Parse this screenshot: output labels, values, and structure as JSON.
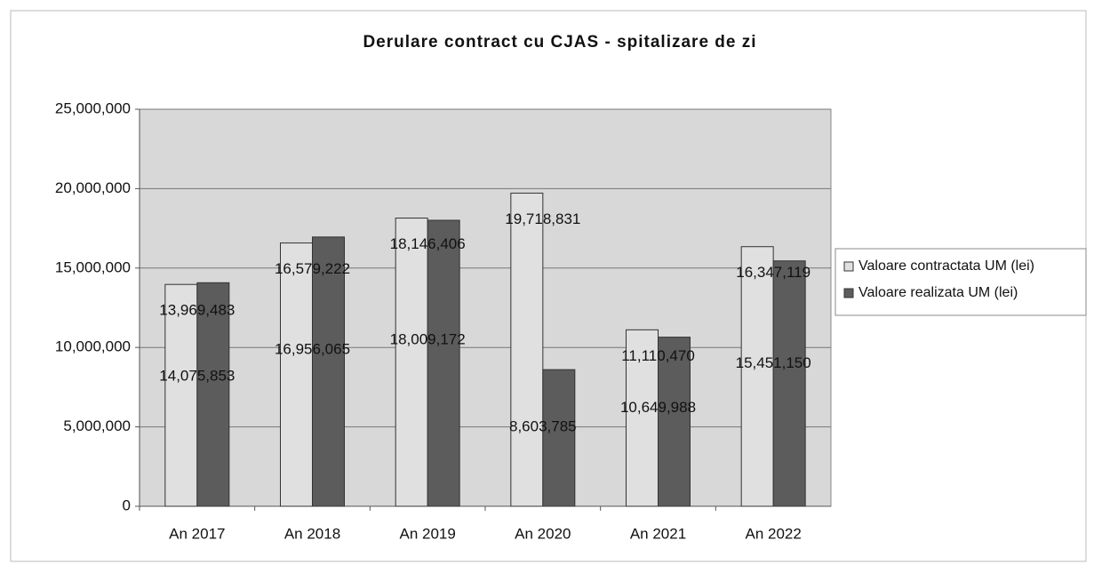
{
  "chart_data": {
    "type": "bar",
    "title": "Derulare contract cu CJAS - spitalizare de zi",
    "categories": [
      "An 2017",
      "An 2018",
      "An 2019",
      "An 2020",
      "An 2021",
      "An 2022"
    ],
    "series": [
      {
        "name": "Valoare contractata UM (lei)",
        "color": "#e0e0e0",
        "values": [
          13969483,
          16579222,
          18146406,
          19718831,
          11110470,
          16347119
        ],
        "value_labels": [
          "13,969,483",
          "16,579,222",
          "18,146,406",
          "19,718,831",
          "11,110,470",
          "16,347,119"
        ]
      },
      {
        "name": "Valoare realizata UM (lei)",
        "color": "#5c5c5c",
        "values": [
          14075853,
          16956065,
          18009172,
          8603785,
          10649988,
          15451150
        ],
        "value_labels": [
          "14,075,853",
          "16,956,065",
          "18,009,172",
          "8,603,785",
          "10,649,988",
          "15,451,150"
        ]
      }
    ],
    "ylim": [
      0,
      25000000
    ],
    "yticks": [
      0,
      {
        "value": 5000000,
        "label": "5,000,000"
      },
      {
        "value": 10000000,
        "label": "10,000,000"
      },
      {
        "value": 15000000,
        "label": "15,000,000"
      },
      {
        "value": 20000000,
        "label": "20,000,000"
      },
      {
        "value": 25000000,
        "label": "25,000,000"
      }
    ],
    "grid": true,
    "legend": "right"
  }
}
